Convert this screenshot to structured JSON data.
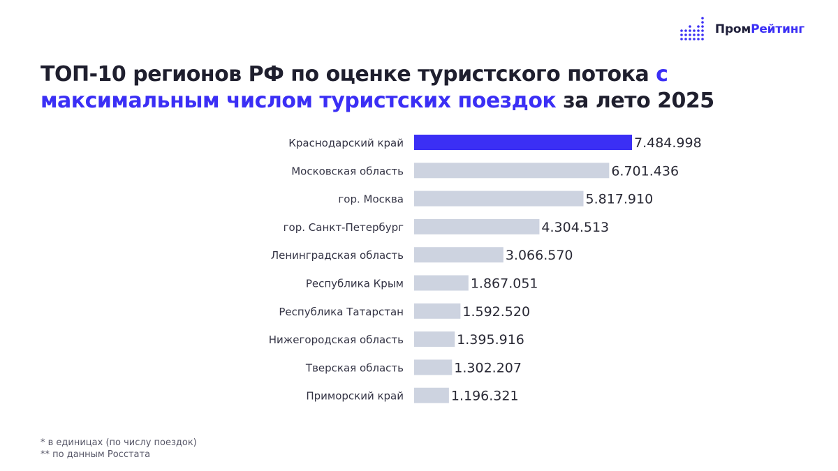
{
  "brand": {
    "name_part1": "Пром",
    "name_part2": "Рейтинг",
    "icon": "dot-bars-logo-icon",
    "accent_color": "#3b2ff5"
  },
  "title": {
    "part1": "ТОП-10 регионов РФ по оценке туристского потока ",
    "part2_highlight": "с максимальным числом туристских поездок",
    "part3": " за лето 2025"
  },
  "chart_data": {
    "type": "bar",
    "orientation": "horizontal",
    "title": "ТОП-10 регионов РФ по оценке туристского потока с максимальным числом туристских поездок за лето 2025",
    "categories": [
      "Краснодарский край",
      "Московская область",
      "гор. Москва",
      "гор. Санкт-Петербург",
      "Ленинградская область",
      "Республика Крым",
      "Республика Татарстан",
      "Нижегородская область",
      "Тверская область",
      "Приморский край"
    ],
    "values": [
      7484998,
      6701436,
      5817910,
      4304513,
      3066570,
      1867051,
      1592520,
      1395916,
      1302207,
      1196321
    ],
    "value_labels": [
      "7.484.998",
      "6.701.436",
      "5.817.910",
      "4.304.513",
      "3.066.570",
      "1.867.051",
      "1.592.520",
      "1.395.916",
      "1.302.207",
      "1.196.321"
    ],
    "highlight_index": 0,
    "colors": {
      "highlight": "#3b2ff5",
      "default": "#cdd3e0",
      "label": "#333344",
      "value": "#2a2a36"
    },
    "xlim": [
      0,
      7484998
    ],
    "grid": false,
    "legend": "none",
    "xlabel": "",
    "ylabel": ""
  },
  "notes": {
    "line1": "* в единицах (по числу поездок)",
    "line2": "** по данным Росстата"
  }
}
